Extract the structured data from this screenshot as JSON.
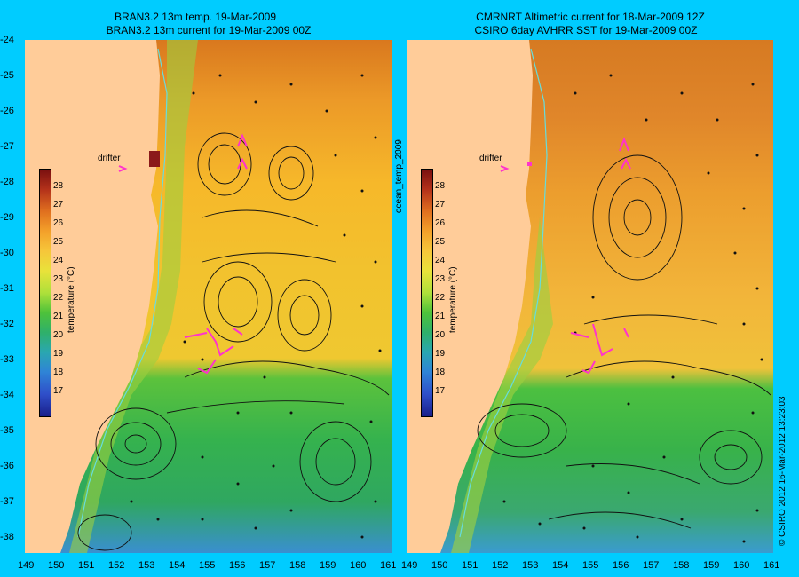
{
  "left_panel": {
    "title_line1": "BRAN3.2 13m temp. 19-Mar-2009",
    "title_line2": "BRAN3.2 13m current for 19-Mar-2009 00Z",
    "drifter_label": "drifter"
  },
  "right_panel": {
    "title_line1": "CMRNRT Altimetric current for 18-Mar-2009 12Z",
    "title_line2": "CSIRO 6day AVHRR SST for 19-Mar-2009 00Z",
    "drifter_label": "drifter"
  },
  "colorbar": {
    "title": "temperature (°C)",
    "ticks": [
      "28",
      "27",
      "26",
      "25",
      "24",
      "23",
      "22",
      "21",
      "20",
      "19",
      "18",
      "17"
    ]
  },
  "middle_label": "ocean_temp_2009",
  "credit": "© CSIRO 2012  16-Mar-2012 13:23:03",
  "axes": {
    "lat_ticks": [
      "-24",
      "-25",
      "-26",
      "-27",
      "-28",
      "-29",
      "-30",
      "-31",
      "-32",
      "-33",
      "-34",
      "-35",
      "-36",
      "-37",
      "-38"
    ],
    "lon_ticks_left": [
      "149",
      "150",
      "151",
      "152",
      "153",
      "154",
      "155",
      "156",
      "157",
      "158",
      "159",
      "160",
      "161"
    ],
    "lon_ticks_right": [
      "149",
      "150",
      "151",
      "152",
      "153",
      "154",
      "155",
      "156",
      "157",
      "158",
      "159",
      "160",
      "161"
    ]
  },
  "colors": {
    "background": "#00ccff",
    "land": "#ffcc99",
    "drifter": "#ff33cc",
    "coastline_contour": "#66dddd"
  }
}
